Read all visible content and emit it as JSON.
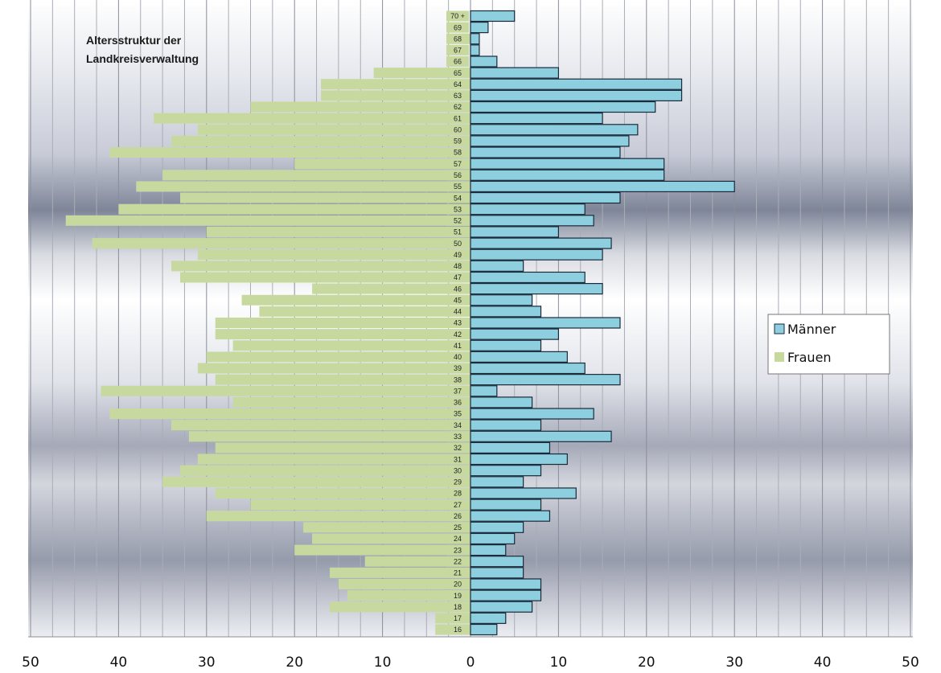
{
  "chart_data": {
    "type": "bar",
    "orientation": "horizontal",
    "title": "Altersstruktur der Landkreisverwaltung",
    "title_lines": [
      "Altersstruktur der",
      "Landkreisverwaltung"
    ],
    "categories": [
      "16",
      "17",
      "18",
      "19",
      "20",
      "21",
      "22",
      "23",
      "24",
      "25",
      "26",
      "27",
      "28",
      "29",
      "30",
      "31",
      "32",
      "33",
      "34",
      "35",
      "36",
      "37",
      "38",
      "39",
      "40",
      "41",
      "42",
      "43",
      "44",
      "45",
      "46",
      "47",
      "48",
      "49",
      "50",
      "51",
      "52",
      "53",
      "54",
      "55",
      "56",
      "57",
      "58",
      "59",
      "60",
      "61",
      "62",
      "63",
      "64",
      "65",
      "66",
      "67",
      "68",
      "69",
      "70 +"
    ],
    "series": [
      {
        "name": "Männer",
        "color": "#8ecfdf",
        "values": [
          3,
          4,
          7,
          8,
          8,
          6,
          6,
          4,
          5,
          6,
          9,
          8,
          12,
          6,
          8,
          11,
          9,
          16,
          8,
          14,
          7,
          3,
          17,
          13,
          11,
          8,
          10,
          17,
          8,
          7,
          15,
          13,
          6,
          15,
          16,
          10,
          14,
          13,
          17,
          30,
          22,
          22,
          17,
          18,
          19,
          15,
          21,
          24,
          24,
          10,
          3,
          1,
          1,
          2,
          5
        ]
      },
      {
        "name": "Frauen",
        "color": "#c8d9a0",
        "values": [
          4,
          4,
          16,
          14,
          15,
          16,
          12,
          20,
          18,
          19,
          30,
          25,
          29,
          35,
          33,
          31,
          29,
          32,
          34,
          41,
          27,
          42,
          29,
          31,
          30,
          27,
          29,
          29,
          24,
          26,
          18,
          33,
          34,
          31,
          43,
          30,
          46,
          40,
          33,
          38,
          35,
          20,
          41,
          34,
          31,
          36,
          25,
          17,
          17,
          11,
          0,
          0,
          1,
          0,
          0
        ]
      }
    ],
    "x_ticks": [
      "50",
      "40",
      "30",
      "20",
      "10",
      "0",
      "10",
      "20",
      "30",
      "40",
      "50"
    ],
    "xlim": [
      -50,
      50
    ],
    "grid": "vertical lines every 2.5",
    "legend": {
      "position": "right",
      "items": [
        "Männer",
        "Frauen"
      ]
    }
  }
}
